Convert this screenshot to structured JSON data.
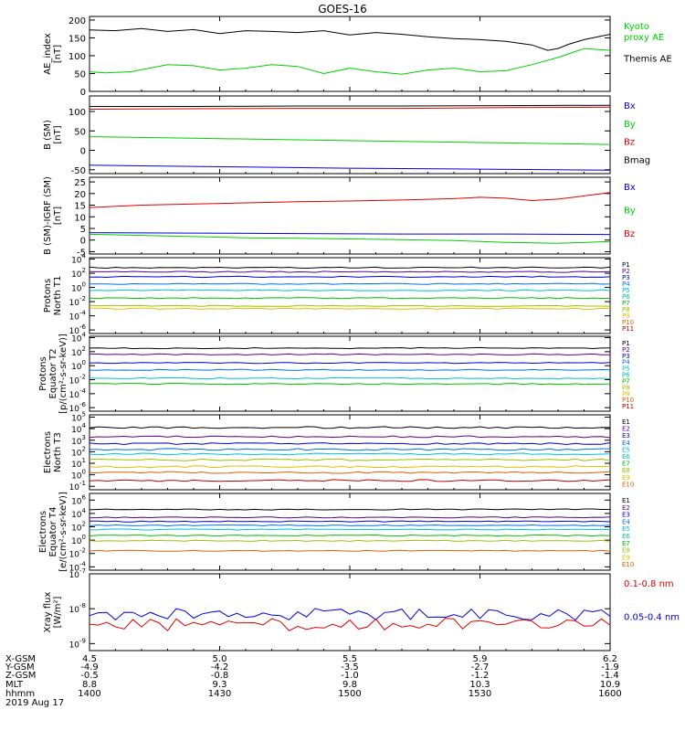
{
  "title": "GOES-16",
  "date_label": "2019 Aug 17",
  "colors": {
    "black": "#000000",
    "green": "#00d000",
    "red": "#e00000",
    "blue": "#0000e0",
    "p_colors": [
      "#000000",
      "#5a0090",
      "#0000d0",
      "#0070e0",
      "#00c0e0",
      "#00c0a0",
      "#00c000",
      "#a0c000",
      "#e0c000",
      "#e06000",
      "#c00000",
      "#800000"
    ]
  },
  "chart_data": [
    {
      "type": "line",
      "ylabel": [
        "AE_index",
        "[nT]"
      ],
      "yticks": [
        "200",
        "150",
        "100",
        "50",
        "0"
      ],
      "ylim": [
        0,
        210
      ],
      "legend": [
        {
          "lines": [
            "Kyoto",
            "proxy AE"
          ],
          "color": "#00d000"
        },
        {
          "lines": [
            "Themis AE"
          ],
          "color": "#000000"
        }
      ],
      "series": [
        {
          "color": "#000000",
          "x": [
            0,
            0.05,
            0.1,
            0.15,
            0.2,
            0.25,
            0.3,
            0.35,
            0.4,
            0.45,
            0.5,
            0.55,
            0.6,
            0.65,
            0.7,
            0.75,
            0.8,
            0.85,
            0.88,
            0.9,
            0.92,
            0.95,
            1.0
          ],
          "values": [
            172,
            170,
            176,
            168,
            173,
            162,
            170,
            168,
            165,
            170,
            158,
            165,
            160,
            153,
            148,
            145,
            140,
            130,
            115,
            120,
            132,
            145,
            160
          ]
        },
        {
          "color": "#00d000",
          "x": [
            0,
            0.03,
            0.08,
            0.15,
            0.2,
            0.25,
            0.3,
            0.35,
            0.4,
            0.45,
            0.5,
            0.55,
            0.6,
            0.65,
            0.7,
            0.75,
            0.8,
            0.85,
            0.9,
            0.95,
            1.0
          ],
          "values": [
            55,
            52,
            55,
            75,
            72,
            60,
            65,
            75,
            70,
            50,
            65,
            55,
            48,
            60,
            65,
            55,
            58,
            75,
            95,
            120,
            115
          ]
        }
      ]
    },
    {
      "type": "line",
      "ylabel": [
        "B (SM)",
        "[nT]"
      ],
      "yticks": [
        "100",
        "50",
        "0",
        "-50"
      ],
      "ylim": [
        -60,
        140
      ],
      "legend": [
        {
          "lines": [
            "Bx"
          ],
          "color": "#0000e0"
        },
        {
          "lines": [
            "By"
          ],
          "color": "#00d000"
        },
        {
          "lines": [
            "Bz"
          ],
          "color": "#e00000"
        },
        {
          "lines": [
            "Bmag"
          ],
          "color": "#000000"
        }
      ],
      "series": [
        {
          "color": "#e00000",
          "x": [
            0,
            0.2,
            0.4,
            0.6,
            0.8,
            1.0
          ],
          "values": [
            106,
            107,
            108,
            108,
            110,
            111
          ]
        },
        {
          "color": "#000000",
          "x": [
            0,
            0.2,
            0.4,
            0.6,
            0.8,
            1.0
          ],
          "values": [
            113,
            113,
            114,
            114,
            115,
            116
          ]
        },
        {
          "color": "#00d000",
          "x": [
            0,
            0.2,
            0.4,
            0.6,
            0.8,
            1.0
          ],
          "values": [
            35,
            31,
            27,
            23,
            19,
            15
          ]
        },
        {
          "color": "#0000e0",
          "x": [
            0,
            0.1,
            0.3,
            0.5,
            0.7,
            0.9,
            1.0
          ],
          "values": [
            -38,
            -40,
            -43,
            -46,
            -48,
            -50,
            -51
          ]
        }
      ]
    },
    {
      "type": "line",
      "ylabel": [
        "B (SM)-IGRF (SM)",
        "[nT]"
      ],
      "yticks": [
        "25",
        "20",
        "15",
        "10",
        "5",
        "0",
        "-5"
      ],
      "ylim": [
        -6,
        27
      ],
      "legend": [
        {
          "lines": [
            "Bx"
          ],
          "color": "#0000e0"
        },
        {
          "lines": [
            "By"
          ],
          "color": "#00d000"
        },
        {
          "lines": [
            "Bz"
          ],
          "color": "#e00000"
        }
      ],
      "series": [
        {
          "color": "#e00000",
          "x": [
            0,
            0.1,
            0.2,
            0.3,
            0.4,
            0.5,
            0.6,
            0.7,
            0.75,
            0.8,
            0.85,
            0.9,
            0.95,
            1.0
          ],
          "values": [
            14,
            15,
            15.5,
            16,
            16.5,
            16.8,
            17.2,
            17.8,
            18.4,
            18.0,
            17.0,
            17.6,
            19.0,
            20.4
          ]
        },
        {
          "color": "#0000e0",
          "x": [
            0,
            0.2,
            0.4,
            0.6,
            0.8,
            1.0
          ],
          "values": [
            3.2,
            3,
            2.8,
            2.6,
            2.6,
            2.4
          ]
        },
        {
          "color": "#00d000",
          "x": [
            0,
            0.1,
            0.2,
            0.3,
            0.4,
            0.5,
            0.6,
            0.7,
            0.8,
            0.9,
            1.0
          ],
          "values": [
            2.5,
            2,
            1.5,
            1,
            0.8,
            0.5,
            0.2,
            -0.2,
            -1,
            -1.4,
            -0.6
          ]
        }
      ]
    },
    {
      "type": "line",
      "log": true,
      "ylabel": [
        "Protons",
        "North T1"
      ],
      "ytick_exponents": [
        4,
        2,
        0,
        -2,
        -4,
        -6
      ],
      "ylim_exp": [
        -6.5,
        4.2
      ],
      "legend_labels": [
        "P1",
        "P2",
        "P3",
        "P4",
        "P5",
        "P6",
        "P7",
        "P8",
        "P9",
        "P10",
        "P11"
      ],
      "series": [
        {
          "color_index": 0,
          "level": 2.8
        },
        {
          "color_index": 1,
          "level": 2.2
        },
        {
          "color_index": 2,
          "level": 1.5
        },
        {
          "color_index": 3,
          "level": 0.5
        },
        {
          "color_index": 4,
          "level": -0.4
        },
        {
          "color_index": 6,
          "level": -1.5
        },
        {
          "color_index": 7,
          "level": -2.6
        },
        {
          "color_index": 8,
          "level": -3.0
        }
      ]
    },
    {
      "type": "line",
      "log": true,
      "ylabel": [
        "Protons",
        "Equator T2",
        "[p/(cm²-s-sr-keV)]"
      ],
      "ytick_exponents": [
        4,
        2,
        0,
        -2,
        -4,
        -6
      ],
      "ylim_exp": [
        -6.5,
        4.2
      ],
      "legend_labels": [
        "P1",
        "P2",
        "P3",
        "P4",
        "P5",
        "P6",
        "P7",
        "P8",
        "P9",
        "P10",
        "P11"
      ],
      "series": [
        {
          "color_index": 0,
          "level": 2.5
        },
        {
          "color_index": 1,
          "level": 1.6
        },
        {
          "color_index": 2,
          "level": 0.4
        },
        {
          "color_index": 3,
          "level": -0.6
        },
        {
          "color_index": 4,
          "level": -1.8
        },
        {
          "color_index": 6,
          "level": -2.6
        }
      ]
    },
    {
      "type": "line",
      "log": true,
      "ylabel": [
        "Electrons",
        "North T3"
      ],
      "ytick_exponents": [
        5,
        4,
        3,
        2,
        1,
        0,
        -1
      ],
      "ylim_exp": [
        -1.3,
        5.2
      ],
      "legend_labels": [
        "E1",
        "E2",
        "E3",
        "E4",
        "E5",
        "E6",
        "E7",
        "E8",
        "E9",
        "E10"
      ],
      "series": [
        {
          "color_index": 0,
          "level": 4.1
        },
        {
          "color_index": 1,
          "level": 3.3
        },
        {
          "color_index": 2,
          "level": 2.7
        },
        {
          "color_index": 3,
          "level": 2.2
        },
        {
          "color_index": 4,
          "level": 1.8
        },
        {
          "color_index": 7,
          "level": 1.3
        },
        {
          "color_index": 8,
          "level": 0.7
        },
        {
          "color_index": 9,
          "level": 0.2
        },
        {
          "color_index": 10,
          "level": -0.5
        }
      ]
    },
    {
      "type": "line",
      "log": true,
      "ylabel": [
        "Electrons",
        "Equator T4",
        "[e/(cm²-s-sr-keV)]"
      ],
      "ytick_exponents": [
        6,
        4,
        2,
        0,
        -2,
        -4
      ],
      "ylim_exp": [
        -4.5,
        7.0
      ],
      "legend_labels": [
        "E1",
        "E2",
        "E3",
        "E4",
        "E5",
        "E6",
        "E7",
        "E8",
        "E9",
        "E10"
      ],
      "series": [
        {
          "color_index": 0,
          "level": 4.6
        },
        {
          "color_index": 1,
          "level": 3.4
        },
        {
          "color_index": 2,
          "level": 2.8
        },
        {
          "color_index": 3,
          "level": 2.2
        },
        {
          "color_index": 4,
          "level": 1.6
        },
        {
          "color_index": 6,
          "level": 0.7
        },
        {
          "color_index": 7,
          "level": -0.1
        },
        {
          "color_index": 9,
          "level": -1.6
        }
      ]
    },
    {
      "type": "line",
      "log": true,
      "ylabel": [
        "Xray flux",
        "[W/m²]"
      ],
      "ytick_exponents": [
        -7,
        -8,
        -9
      ],
      "ylim_exp": [
        -9.2,
        -7.0
      ],
      "legend": [
        {
          "lines": [
            "0.1-0.8 nm"
          ],
          "color": "#e00000"
        },
        {
          "lines": [
            "0.05-0.4 nm"
          ],
          "color": "#0000e0"
        }
      ],
      "series": [
        {
          "color": "#0000e0",
          "level": -8.15
        },
        {
          "color": "#e00000",
          "level": -8.45
        }
      ]
    }
  ],
  "x_axis": {
    "row_labels": [
      "X-GSM",
      "Y-GSM",
      "Z-GSM",
      "MLT",
      "hhmm"
    ],
    "columns": [
      {
        "values": [
          "4.5",
          "-4.9",
          "-0.5",
          "8.8",
          "1400"
        ]
      },
      {
        "values": [
          "5.0",
          "-4.2",
          "-0.8",
          "9.3",
          "1430"
        ]
      },
      {
        "values": [
          "5.5",
          "-3.5",
          "-1.0",
          "9.8",
          "1500"
        ]
      },
      {
        "values": [
          "5.9",
          "-2.7",
          "-1.2",
          "10.3",
          "1530"
        ]
      },
      {
        "values": [
          "6.2",
          "-1.9",
          "-1.4",
          "10.9",
          "1600"
        ]
      }
    ]
  }
}
